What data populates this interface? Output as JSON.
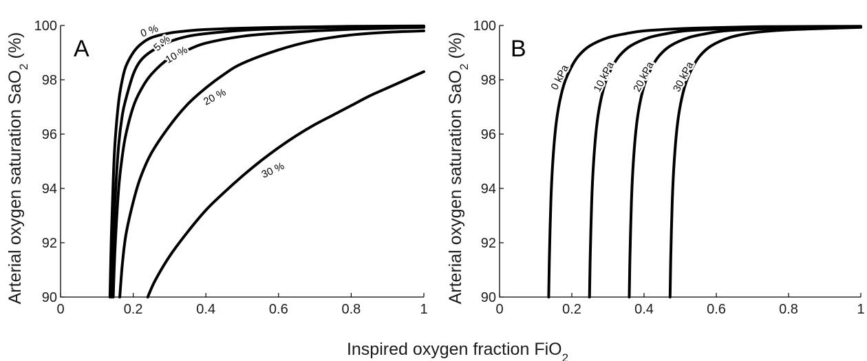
{
  "figure": {
    "xlabel": "Inspired oxygen fraction FiO",
    "xlabel_sub": "2"
  },
  "chart_data": [
    {
      "type": "line",
      "panel": "A",
      "ylabel": "Arterial oxygen saturation SaO",
      "ylabel_sub": "2",
      "ylabel_suffix": " (%)",
      "xlim": [
        0,
        1
      ],
      "ylim": [
        90,
        100
      ],
      "x_ticks": [
        0,
        0.2,
        0.4,
        0.6,
        0.8,
        1
      ],
      "x_tick_labels": [
        "0",
        "0.2",
        "0.4",
        "0.6",
        "0.8",
        "1"
      ],
      "y_ticks": [
        90,
        92,
        94,
        96,
        98,
        100
      ],
      "y_tick_labels": [
        "90",
        "92",
        "94",
        "96",
        "98",
        "100"
      ],
      "grid": false,
      "series": [
        {
          "name": "0 %",
          "x": [
            0.136,
            0.14,
            0.145,
            0.15,
            0.16,
            0.17,
            0.18,
            0.2,
            0.22,
            0.25,
            0.3,
            0.35,
            0.4,
            0.5,
            0.6,
            0.7,
            0.8,
            1.0
          ],
          "y": [
            90,
            92.3,
            94.3,
            95.7,
            97.2,
            98.0,
            98.5,
            99.0,
            99.3,
            99.55,
            99.72,
            99.8,
            99.85,
            99.9,
            99.93,
            99.95,
            99.97,
            99.98
          ]
        },
        {
          "name": "5 %",
          "x": [
            0.14,
            0.145,
            0.15,
            0.16,
            0.17,
            0.18,
            0.2,
            0.22,
            0.25,
            0.3,
            0.35,
            0.4,
            0.5,
            0.6,
            0.8,
            1.0
          ],
          "y": [
            90,
            92.0,
            93.6,
            95.6,
            96.7,
            97.3,
            98.2,
            98.7,
            99.05,
            99.4,
            99.6,
            99.7,
            99.82,
            99.88,
            99.94,
            99.96
          ]
        },
        {
          "name": "10 %",
          "x": [
            0.145,
            0.15,
            0.16,
            0.17,
            0.18,
            0.2,
            0.22,
            0.25,
            0.3,
            0.35,
            0.4,
            0.5,
            0.6,
            0.7,
            0.8,
            0.9,
            1.0
          ],
          "y": [
            90,
            91.8,
            94.0,
            95.2,
            96.0,
            97.0,
            97.6,
            98.2,
            98.8,
            99.1,
            99.35,
            99.6,
            99.72,
            99.8,
            99.86,
            99.9,
            99.93
          ]
        },
        {
          "name": "20 %",
          "x": [
            0.163,
            0.17,
            0.18,
            0.2,
            0.22,
            0.25,
            0.3,
            0.35,
            0.4,
            0.45,
            0.5,
            0.6,
            0.7,
            0.8,
            0.9,
            1.0
          ],
          "y": [
            90,
            91.2,
            92.3,
            93.5,
            94.4,
            95.3,
            96.3,
            97.1,
            97.7,
            98.2,
            98.6,
            99.1,
            99.45,
            99.65,
            99.75,
            99.8
          ]
        },
        {
          "name": "30 %",
          "x": [
            0.24,
            0.26,
            0.3,
            0.35,
            0.4,
            0.45,
            0.5,
            0.55,
            0.6,
            0.65,
            0.7,
            0.75,
            0.8,
            0.85,
            0.9,
            0.95,
            1.0
          ],
          "y": [
            90,
            90.6,
            91.5,
            92.4,
            93.2,
            93.85,
            94.45,
            95.0,
            95.5,
            95.95,
            96.35,
            96.7,
            97.05,
            97.4,
            97.7,
            98.0,
            98.3
          ]
        }
      ],
      "curve_labels": [
        {
          "text": "0 %",
          "x": 0.245,
          "y": 99.78,
          "angle": -20
        },
        {
          "text": "5 %",
          "x": 0.28,
          "y": 99.33,
          "angle": -42
        },
        {
          "text": "10 %",
          "x": 0.32,
          "y": 98.9,
          "angle": -30
        },
        {
          "text": "20 %",
          "x": 0.425,
          "y": 97.35,
          "angle": -28
        },
        {
          "text": "30 %",
          "x": 0.585,
          "y": 94.65,
          "angle": -25
        }
      ]
    },
    {
      "type": "line",
      "panel": "B",
      "ylabel": "Arterial oxygen saturation SaO",
      "ylabel_sub": "2",
      "ylabel_suffix": " (%)",
      "xlim": [
        0,
        1
      ],
      "ylim": [
        90,
        100
      ],
      "x_ticks": [
        0,
        0.2,
        0.4,
        0.6,
        0.8,
        1
      ],
      "x_tick_labels": [
        "0",
        "0.2",
        "0.4",
        "0.6",
        "0.8",
        "1"
      ],
      "y_ticks": [
        90,
        92,
        94,
        96,
        98,
        100
      ],
      "y_tick_labels": [
        "90",
        "92",
        "94",
        "96",
        "98",
        "100"
      ],
      "grid": false,
      "series": [
        {
          "name": "0 kPa",
          "x": [
            0.136,
            0.138,
            0.142,
            0.147,
            0.155,
            0.165,
            0.18,
            0.2,
            0.22,
            0.25,
            0.3,
            0.35,
            0.4,
            0.5,
            0.6,
            0.7,
            0.8,
            1.0
          ],
          "y": [
            90,
            91.5,
            93.5,
            94.9,
            96.2,
            97.1,
            97.9,
            98.5,
            98.9,
            99.25,
            99.55,
            99.7,
            99.8,
            99.88,
            99.92,
            99.95,
            99.96,
            99.97
          ]
        },
        {
          "name": "10 kPa",
          "x": [
            0.249,
            0.251,
            0.255,
            0.26,
            0.268,
            0.278,
            0.293,
            0.313,
            0.333,
            0.363,
            0.413,
            0.463,
            0.513,
            0.6,
            0.7,
            0.8,
            1.0
          ],
          "y": [
            90,
            91.5,
            93.5,
            94.9,
            96.2,
            97.1,
            97.9,
            98.5,
            98.9,
            99.25,
            99.55,
            99.7,
            99.8,
            99.87,
            99.91,
            99.94,
            99.96
          ]
        },
        {
          "name": "20 kPa",
          "x": [
            0.359,
            0.361,
            0.365,
            0.37,
            0.378,
            0.388,
            0.403,
            0.423,
            0.443,
            0.473,
            0.523,
            0.573,
            0.623,
            0.7,
            0.8,
            0.9,
            1.0
          ],
          "y": [
            90,
            91.5,
            93.5,
            94.9,
            96.2,
            97.1,
            97.9,
            98.5,
            98.9,
            99.25,
            99.55,
            99.7,
            99.8,
            99.86,
            99.9,
            99.93,
            99.95
          ]
        },
        {
          "name": "30 kPa",
          "x": [
            0.472,
            0.474,
            0.478,
            0.483,
            0.491,
            0.501,
            0.516,
            0.536,
            0.556,
            0.586,
            0.636,
            0.686,
            0.736,
            0.8,
            0.9,
            1.0
          ],
          "y": [
            90,
            91.5,
            93.5,
            94.9,
            96.2,
            97.1,
            97.9,
            98.5,
            98.9,
            99.25,
            99.55,
            99.7,
            99.78,
            99.84,
            99.89,
            99.93
          ]
        }
      ],
      "curve_labels": [
        {
          "text": "0 kPa",
          "x": 0.168,
          "y": 98.08,
          "angle": -63
        },
        {
          "text": "10 kPa",
          "x": 0.29,
          "y": 98.1,
          "angle": -63
        },
        {
          "text": "20 kPa",
          "x": 0.4,
          "y": 98.1,
          "angle": -63
        },
        {
          "text": "30 kPa",
          "x": 0.51,
          "y": 98.1,
          "angle": -63
        }
      ]
    }
  ]
}
